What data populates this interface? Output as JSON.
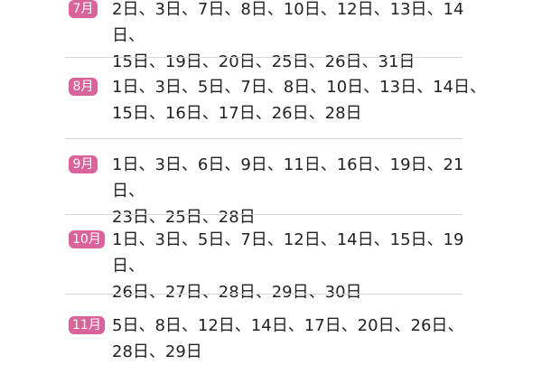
{
  "accent_color": "#d9639b",
  "months": [
    {
      "label": "7月",
      "lines": [
        "2日、3日、7日、8日、10日、12日、13日、14日、",
        "15日、19日、20日、25日、26日、31日"
      ]
    },
    {
      "label": "8月",
      "lines": [
        "1日、3日、5日、7日、8日、10日、13日、14日、",
        "15日、16日、17日、26日、28日"
      ]
    },
    {
      "label": "9月",
      "lines": [
        "1日、3日、6日、9日、11日、16日、19日、21日、",
        "23日、25日、28日"
      ]
    },
    {
      "label": "10月",
      "lines": [
        "1日、3日、5日、7日、12日、14日、15日、19日、",
        "26日、27日、28日、29日、30日"
      ]
    },
    {
      "label": "11月",
      "lines": [
        "5日、8日、12日、14日、17日、20日、26日、",
        "28日、29日"
      ]
    }
  ]
}
